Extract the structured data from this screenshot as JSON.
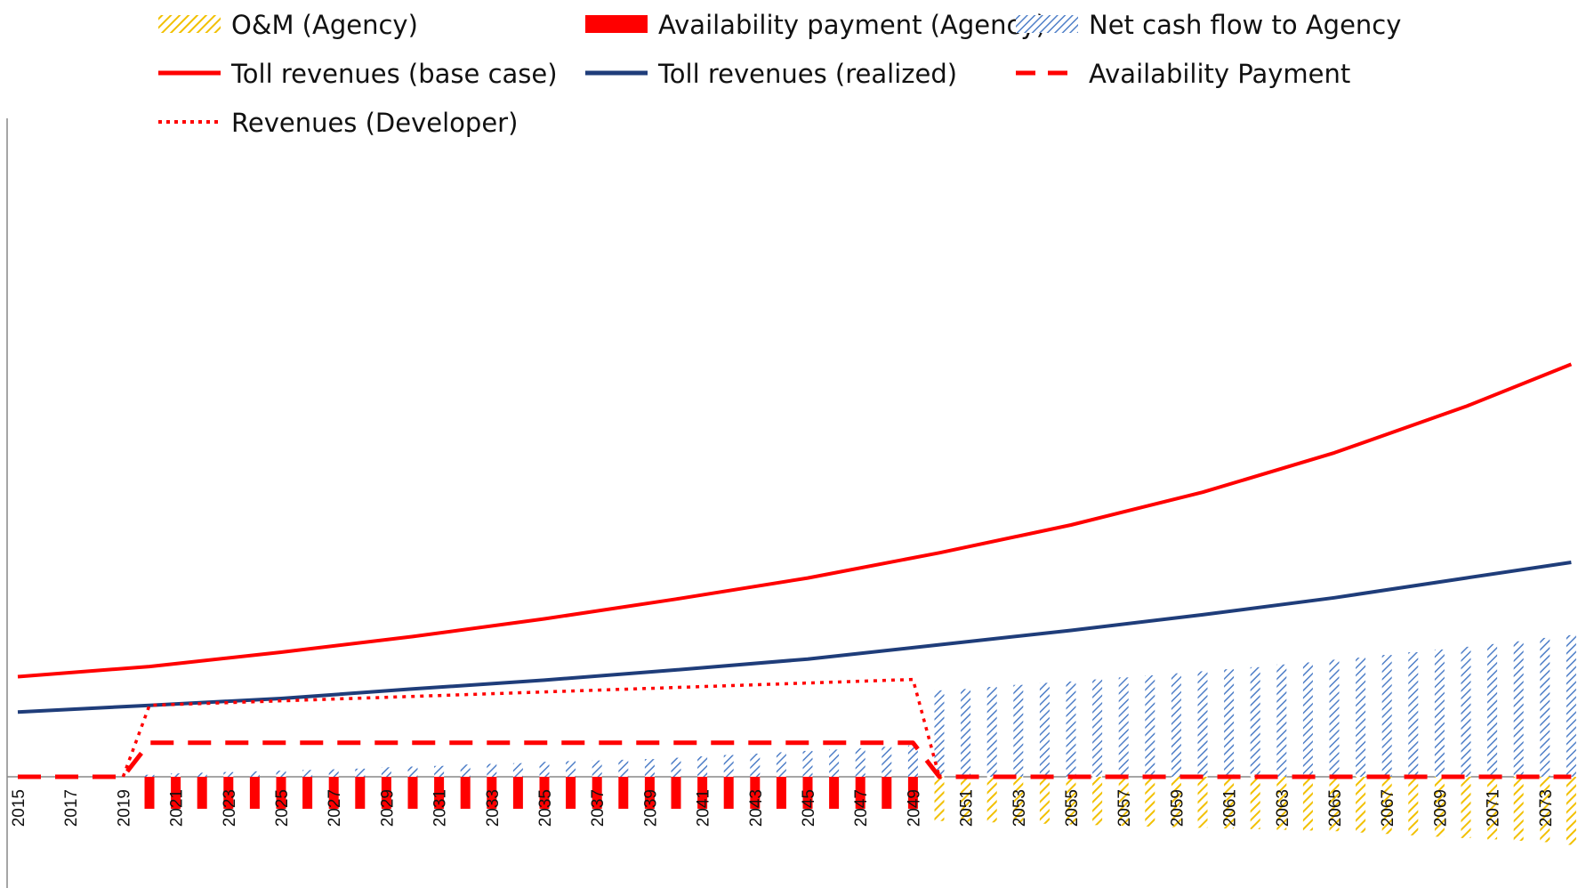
{
  "chart_data": {
    "type": "bar",
    "title": "",
    "xlabel": "",
    "ylabel": "",
    "x_range": [
      2015,
      2074
    ],
    "x_tick_labels": [
      "2015",
      "2017",
      "2019",
      "2021",
      "2023",
      "2025",
      "2027",
      "2029",
      "2031",
      "2033",
      "2035",
      "2037",
      "2039",
      "2041",
      "2043",
      "2045",
      "2047",
      "2049",
      "2051",
      "2053",
      "2055",
      "2057",
      "2059",
      "2061",
      "2063",
      "2065",
      "2067",
      "2069",
      "2071",
      "2073"
    ],
    "y_axis_labels_shown": false,
    "y_range_relative": [
      -105,
      690
    ],
    "grid": false,
    "legend_position": "top",
    "series": [
      {
        "name": "O&M (Agency)",
        "kind": "bar",
        "pattern": "diagonal-hatch",
        "color": "#f2c000",
        "x": [
          2050,
          2051,
          2052,
          2053,
          2054,
          2055,
          2056,
          2057,
          2058,
          2059,
          2060,
          2061,
          2062,
          2063,
          2064,
          2065,
          2066,
          2067,
          2068,
          2069,
          2070,
          2071,
          2072,
          2073,
          2074
        ],
        "values": [
          -65,
          -66,
          -67,
          -68,
          -69,
          -70,
          -71,
          -72,
          -73,
          -74,
          -75,
          -76,
          -77,
          -78,
          -79,
          -80,
          -82,
          -84,
          -86,
          -88,
          -90,
          -92,
          -94,
          -96,
          -100
        ]
      },
      {
        "name": "Availability payment (Agency)",
        "kind": "bar",
        "pattern": "solid",
        "color": "#ff0000",
        "x": [
          2020,
          2021,
          2022,
          2023,
          2024,
          2025,
          2026,
          2027,
          2028,
          2029,
          2030,
          2031,
          2032,
          2033,
          2034,
          2035,
          2036,
          2037,
          2038,
          2039,
          2040,
          2041,
          2042,
          2043,
          2044,
          2045,
          2046,
          2047,
          2048,
          2049
        ],
        "values": [
          -47,
          -47,
          -47,
          -47,
          -47,
          -47,
          -47,
          -47,
          -47,
          -47,
          -47,
          -47,
          -47,
          -47,
          -47,
          -47,
          -47,
          -47,
          -47,
          -47,
          -47,
          -47,
          -47,
          -47,
          -47,
          -47,
          -47,
          -47,
          -47,
          -47
        ]
      },
      {
        "name": "Net cash flow to Agency",
        "kind": "bar",
        "pattern": "diagonal-hatch",
        "color": "#4f7fc8",
        "x": [
          2020,
          2021,
          2022,
          2023,
          2024,
          2025,
          2026,
          2027,
          2028,
          2029,
          2030,
          2031,
          2032,
          2033,
          2034,
          2035,
          2036,
          2037,
          2038,
          2039,
          2040,
          2041,
          2042,
          2043,
          2044,
          2045,
          2046,
          2047,
          2048,
          2049,
          2050,
          2051,
          2052,
          2053,
          2054,
          2055,
          2056,
          2057,
          2058,
          2059,
          2060,
          2061,
          2062,
          2063,
          2064,
          2065,
          2066,
          2067,
          2068,
          2069,
          2070,
          2071,
          2072,
          2073,
          2074
        ],
        "values": [
          3,
          5,
          6,
          7,
          8,
          9,
          10,
          11,
          12,
          14,
          15,
          16,
          18,
          19,
          20,
          22,
          23,
          24,
          25,
          26,
          28,
          30,
          32,
          34,
          36,
          38,
          40,
          42,
          44,
          46,
          127,
          129,
          132,
          135,
          138,
          140,
          143,
          146,
          149,
          152,
          155,
          158,
          161,
          165,
          168,
          172,
          175,
          179,
          183,
          187,
          191,
          195,
          199,
          204,
          208
        ]
      },
      {
        "name": "Toll revenues (base case)",
        "kind": "line",
        "style": "solid",
        "color": "#ff0000",
        "x": [
          2015,
          2020,
          2025,
          2030,
          2035,
          2040,
          2045,
          2050,
          2055,
          2060,
          2065,
          2070,
          2074
        ],
        "values": [
          147,
          162,
          183,
          206,
          232,
          261,
          292,
          329,
          370,
          418,
          476,
          544,
          606
        ]
      },
      {
        "name": "Toll revenues (realized)",
        "kind": "line",
        "style": "solid",
        "color": "#1f3d7a",
        "x": [
          2015,
          2020,
          2025,
          2030,
          2035,
          2040,
          2045,
          2050,
          2055,
          2060,
          2065,
          2070,
          2074
        ],
        "values": [
          95,
          105,
          115,
          129,
          142,
          157,
          173,
          194,
          215,
          238,
          263,
          292,
          315
        ]
      },
      {
        "name": "Availability Payment",
        "kind": "line",
        "style": "dashed",
        "color": "#ff0000",
        "x": [
          2015,
          2019,
          2020,
          2049,
          2050,
          2074
        ],
        "values": [
          0,
          0,
          50,
          50,
          0,
          0
        ]
      },
      {
        "name": "Revenues (Developer)",
        "kind": "line",
        "style": "dotted",
        "color": "#ff0000",
        "x": [
          2019,
          2020,
          2049,
          2050
        ],
        "values": [
          0,
          105,
          143,
          0
        ]
      }
    ]
  }
}
